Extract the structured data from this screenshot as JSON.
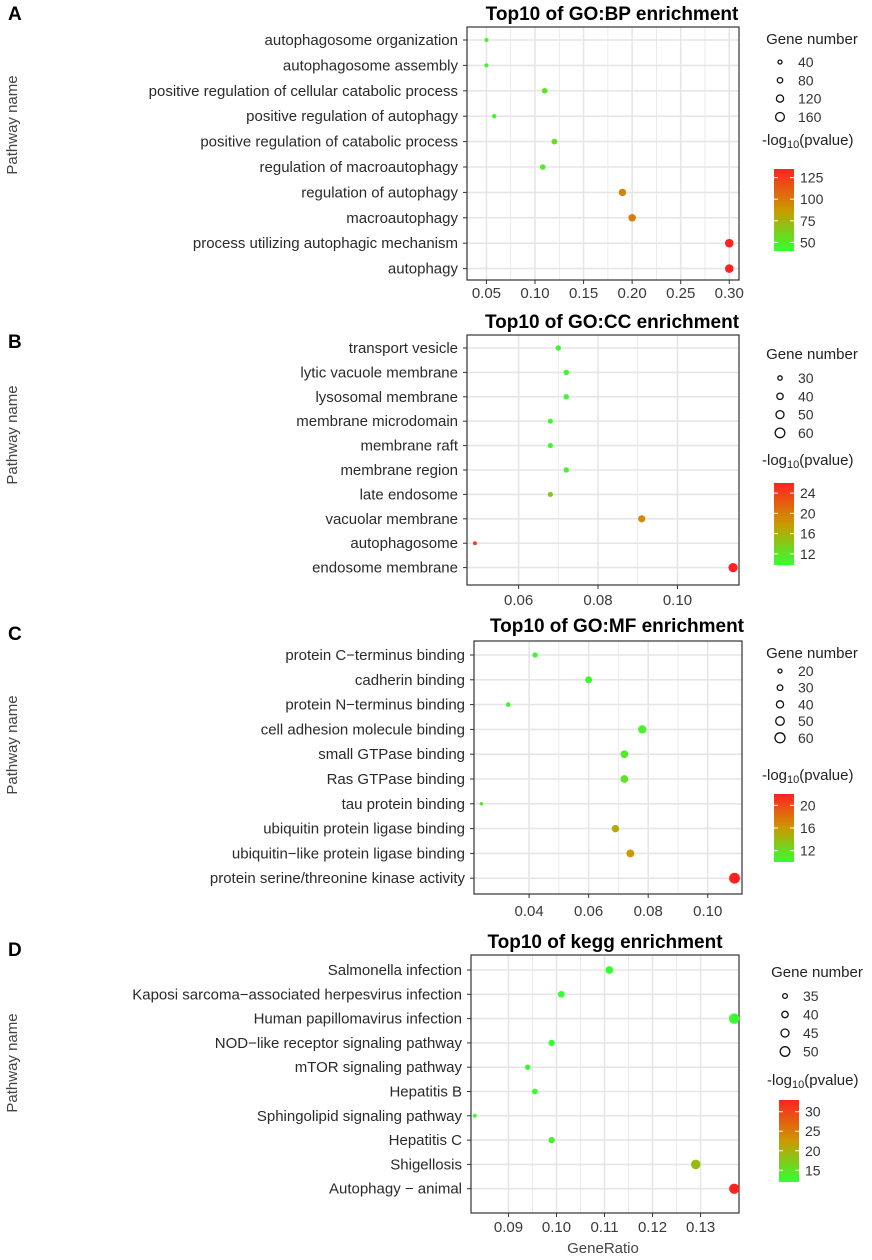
{
  "chart_data": [
    {
      "type": "scatter",
      "panel": "A",
      "title": "Top10 of GO:BP enrichment",
      "ylabel": "Pathway name",
      "xlabel": "",
      "xticks": [
        0.05,
        0.1,
        0.15,
        0.2,
        0.25,
        0.3
      ],
      "xtick_labels": [
        "0.05",
        "0.10",
        "0.15",
        "0.20",
        "0.25",
        "0.30"
      ],
      "xlim": [
        0.03,
        0.31
      ],
      "categories": [
        "autophagosome organization",
        "autophagosome assembly",
        "positive regulation of cellular catabolic process",
        "positive regulation of autophagy",
        "positive regulation of catabolic process",
        "regulation of macroautophagy",
        "regulation of autophagy",
        "macroautophagy",
        "process utilizing autophagic mechanism",
        "autophagy"
      ],
      "x": [
        0.05,
        0.05,
        0.11,
        0.058,
        0.12,
        0.108,
        0.19,
        0.2,
        0.3,
        0.3
      ],
      "size": [
        40,
        40,
        82,
        48,
        84,
        80,
        125,
        128,
        155,
        155
      ],
      "color_value": [
        45,
        45,
        52,
        44,
        56,
        50,
        96,
        98,
        135,
        135
      ],
      "size_legend": {
        "title": "Gene number",
        "values": [
          40,
          80,
          120,
          160
        ],
        "labels": [
          "40",
          "80",
          "120",
          "160"
        ]
      },
      "color_legend": {
        "title_prefix": "-log",
        "title_sub": "10",
        "title_suffix": "(pvalue)",
        "min": 40,
        "max": 135,
        "ticks": [
          125,
          100,
          75,
          50
        ],
        "tick_labels": [
          "125",
          "100",
          "75",
          "50"
        ]
      }
    },
    {
      "type": "scatter",
      "panel": "B",
      "title": "Top10 of GO:CC enrichment",
      "ylabel": "Pathway name",
      "xlabel": "",
      "xticks": [
        0.06,
        0.08,
        0.1
      ],
      "xtick_labels": [
        "0.06",
        "0.08",
        "0.10"
      ],
      "xlim": [
        0.047,
        0.1155
      ],
      "categories": [
        "transport vesicle",
        "lytic vacuole membrane",
        "lysosomal membrane",
        "membrane microdomain",
        "membrane raft",
        "membrane region",
        "late endosome",
        "vacuolar membrane",
        "autophagosome",
        "endosome membrane"
      ],
      "x": [
        0.07,
        0.072,
        0.072,
        0.068,
        0.068,
        0.072,
        0.068,
        0.091,
        0.049,
        0.114
      ],
      "size": [
        36,
        36,
        36,
        34,
        34,
        36,
        34,
        46,
        27,
        58
      ],
      "color_value": [
        10.5,
        10.5,
        10.5,
        10.5,
        10.5,
        11,
        14,
        19,
        24,
        26
      ],
      "size_legend": {
        "title": "Gene number",
        "values": [
          30,
          40,
          50,
          60
        ],
        "labels": [
          "30",
          "40",
          "50",
          "60"
        ]
      },
      "color_legend": {
        "title_prefix": "-log",
        "title_sub": "10",
        "title_suffix": "(pvalue)",
        "min": 9.8,
        "max": 26,
        "ticks": [
          24,
          20,
          16,
          12
        ],
        "tick_labels": [
          "24",
          "20",
          "16",
          "12"
        ]
      }
    },
    {
      "type": "scatter",
      "panel": "C",
      "title": "Top10 of GO:MF enrichment",
      "ylabel": "Pathway name",
      "xlabel": "",
      "xticks": [
        0.04,
        0.06,
        0.08,
        0.1
      ],
      "xtick_labels": [
        "0.04",
        "0.06",
        "0.08",
        "0.10"
      ],
      "xlim": [
        0.0215,
        0.1115
      ],
      "categories": [
        "protein C−terminus binding",
        "cadherin binding",
        "protein N−terminus binding",
        "cell adhesion molecule binding",
        "small GTPase binding",
        "Ras GTPase binding",
        "tau protein binding",
        "ubiquitin protein ligase binding",
        "ubiquitin−like protein ligase binding",
        "protein serine/threonine kinase activity"
      ],
      "x": [
        0.042,
        0.06,
        0.033,
        0.078,
        0.072,
        0.072,
        0.024,
        0.069,
        0.074,
        0.109
      ],
      "size": [
        28,
        40,
        24,
        49,
        45,
        45,
        17,
        43,
        46,
        66
      ],
      "color_value": [
        10.6,
        10.6,
        10.6,
        10.8,
        11.2,
        11.6,
        11.6,
        15,
        16,
        22
      ],
      "size_legend": {
        "title": "Gene number",
        "values": [
          20,
          30,
          40,
          50,
          60
        ],
        "labels": [
          "20",
          "30",
          "40",
          "50",
          "60"
        ]
      },
      "color_legend": {
        "title_prefix": "-log",
        "title_sub": "10",
        "title_suffix": "(pvalue)",
        "min": 10,
        "max": 22,
        "ticks": [
          20,
          16,
          12
        ],
        "tick_labels": [
          "20",
          "16",
          "12"
        ]
      }
    },
    {
      "type": "scatter",
      "panel": "D",
      "title": "Top10 of kegg enrichment",
      "ylabel": "Pathway name",
      "xlabel": "GeneRatio",
      "xticks": [
        0.09,
        0.1,
        0.11,
        0.12,
        0.13
      ],
      "xtick_labels": [
        "0.09",
        "0.10",
        "0.11",
        "0.12",
        "0.13"
      ],
      "xlim": [
        0.0822,
        0.138
      ],
      "categories": [
        "Salmonella infection",
        "Kaposi sarcoma−associated herpesvirus infection",
        "Human papillomavirus infection",
        "NOD−like receptor signaling pathway",
        "mTOR signaling pathway",
        "Hepatitis B",
        "Sphingolipid signaling pathway",
        "Hepatitis C",
        "Shigellosis",
        "Autophagy − animal"
      ],
      "x": [
        0.111,
        0.101,
        0.137,
        0.099,
        0.094,
        0.0955,
        0.083,
        0.099,
        0.129,
        0.137
      ],
      "size": [
        44,
        41,
        53,
        40,
        37,
        38,
        32,
        40,
        50,
        52
      ],
      "color_value": [
        12,
        12,
        12.5,
        12,
        12.2,
        12,
        12.5,
        13.5,
        19,
        33
      ],
      "size_legend": {
        "title": "Gene number",
        "values": [
          35,
          40,
          45,
          50
        ],
        "labels": [
          "35",
          "40",
          "45",
          "50"
        ]
      },
      "color_legend": {
        "title_prefix": "-log",
        "title_sub": "10",
        "title_suffix": "(pvalue)",
        "min": 12,
        "max": 33,
        "ticks": [
          30,
          25,
          20,
          15
        ],
        "tick_labels": [
          "30",
          "25",
          "20",
          "15"
        ]
      }
    }
  ],
  "colors": {
    "low": "#33ff33",
    "mid": "#cc9900",
    "high": "#ff2222",
    "grid": "#e6e6e6",
    "axis": "#333333"
  }
}
